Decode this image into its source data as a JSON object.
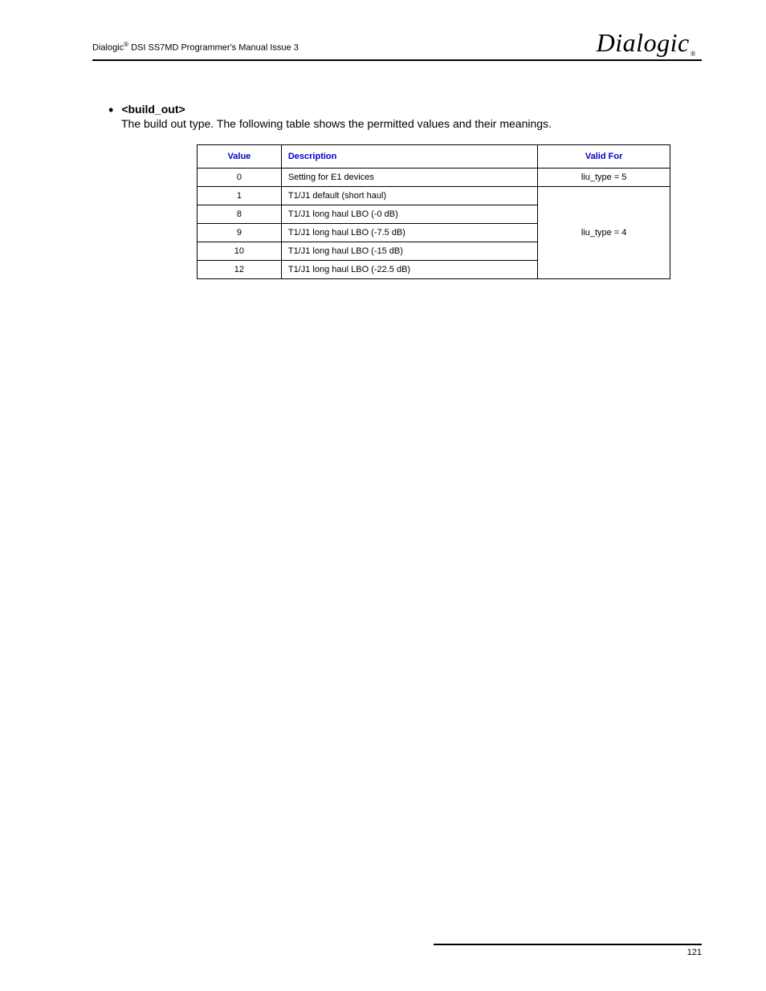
{
  "header": {
    "brand": "Dialogic",
    "reg": "®",
    "doc_title_pre": "Dialogic",
    "doc_title_post": " DSI SS7MD Programmer's Manual  Issue 3"
  },
  "section": {
    "bullet": "•",
    "param": "<build_out>",
    "desc": "The build out type. The following table shows the permitted values and their meanings."
  },
  "table": {
    "columns": [
      "Value",
      "Description",
      "Valid For"
    ],
    "header_color": "#0000d0",
    "border_color": "#000000",
    "rows": [
      {
        "value": "0",
        "desc": "Setting for E1 devices",
        "valid": "liu_type = 5",
        "span": 1
      },
      {
        "value": "1",
        "desc": "T1/J1 default (short haul)",
        "valid": "liu_type = 4",
        "span": 5
      },
      {
        "value": "8",
        "desc": "T1/J1 long haul LBO (-0 dB)"
      },
      {
        "value": "9",
        "desc": "T1/J1 long haul LBO (-7.5 dB)"
      },
      {
        "value": "10",
        "desc": "T1/J1 long haul LBO (-15 dB)"
      },
      {
        "value": "12",
        "desc": "T1/J1 long haul LBO (-22.5 dB)"
      }
    ]
  },
  "footer": {
    "page_number": "121"
  }
}
